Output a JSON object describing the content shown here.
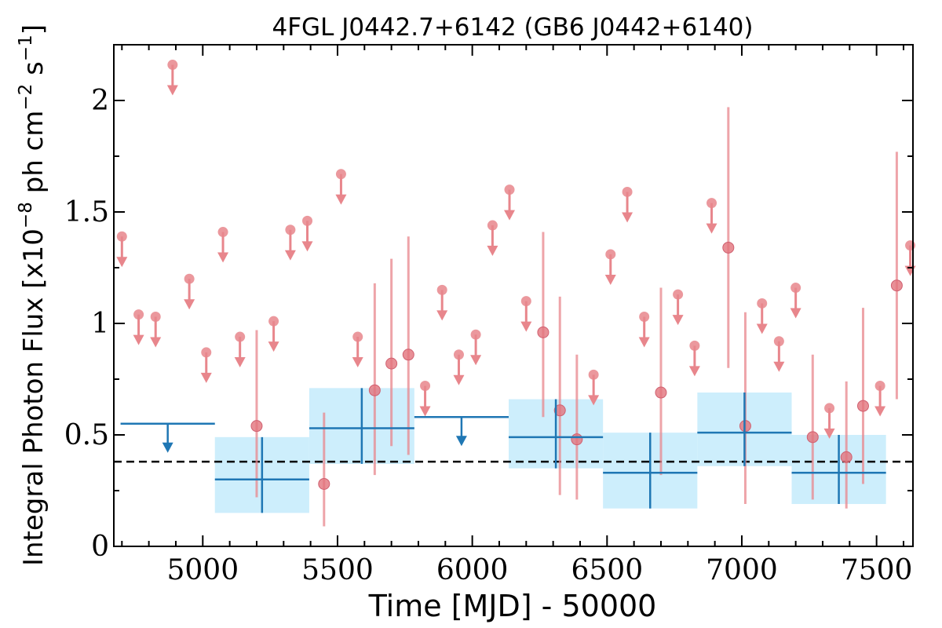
{
  "chart_data": {
    "type": "scatter",
    "title": "4FGL J0442.7+6142 (GB6 J0442+6140)",
    "xlabel": "Time [MJD] - 50000",
    "ylabel": "Integral Photon Flux [x10",
    "ylabel_exp1": "−8",
    "ylabel_mid": " ph cm",
    "ylabel_exp2": "−2",
    "ylabel_mid2": " s",
    "ylabel_exp3": "−1",
    "ylabel_end": "]",
    "xlim": [
      4670,
      7635
    ],
    "ylim": [
      0,
      2.25
    ],
    "x_ticks": [
      5000,
      5500,
      6000,
      6500,
      7000,
      7500
    ],
    "x_tick_labels": [
      "5000",
      "5500",
      "6000",
      "6500",
      "7000",
      "7500"
    ],
    "y_ticks": [
      0,
      0.5,
      1,
      1.5,
      2
    ],
    "y_tick_labels": [
      "0",
      "0.5",
      "1",
      "1.5",
      "2"
    ],
    "x_minor_step": 100,
    "y_minor_step": 0.25,
    "reference_line": 0.38,
    "colors": {
      "short": "#e8868c",
      "long": "#1f77b4",
      "band": "#cdeefc"
    },
    "short_upper_limits": [
      {
        "x": 4700,
        "y": 1.39
      },
      {
        "x": 4762,
        "y": 1.04
      },
      {
        "x": 4825,
        "y": 1.03
      },
      {
        "x": 4888,
        "y": 2.16
      },
      {
        "x": 4950,
        "y": 1.2
      },
      {
        "x": 5013,
        "y": 0.87
      },
      {
        "x": 5075,
        "y": 1.41
      },
      {
        "x": 5138,
        "y": 0.94
      },
      {
        "x": 5263,
        "y": 1.01
      },
      {
        "x": 5325,
        "y": 1.42
      },
      {
        "x": 5388,
        "y": 1.46
      },
      {
        "x": 5513,
        "y": 1.67
      },
      {
        "x": 5575,
        "y": 0.94
      },
      {
        "x": 5825,
        "y": 0.72
      },
      {
        "x": 5888,
        "y": 1.15
      },
      {
        "x": 5950,
        "y": 0.86
      },
      {
        "x": 6013,
        "y": 0.95
      },
      {
        "x": 6075,
        "y": 1.44
      },
      {
        "x": 6138,
        "y": 1.6
      },
      {
        "x": 6200,
        "y": 1.1
      },
      {
        "x": 6450,
        "y": 0.77
      },
      {
        "x": 6513,
        "y": 1.31
      },
      {
        "x": 6575,
        "y": 1.59
      },
      {
        "x": 6638,
        "y": 1.03
      },
      {
        "x": 6763,
        "y": 1.13
      },
      {
        "x": 6825,
        "y": 0.9
      },
      {
        "x": 6888,
        "y": 1.54
      },
      {
        "x": 7075,
        "y": 1.09
      },
      {
        "x": 7138,
        "y": 0.92
      },
      {
        "x": 7200,
        "y": 1.16
      },
      {
        "x": 7325,
        "y": 0.62
      },
      {
        "x": 7513,
        "y": 0.72
      },
      {
        "x": 7625,
        "y": 1.35
      }
    ],
    "short_detections": [
      {
        "x": 5200,
        "y": 0.54,
        "lo": 0.22,
        "hi": 0.97
      },
      {
        "x": 5450,
        "y": 0.28,
        "lo": 0.09,
        "hi": 0.6
      },
      {
        "x": 5638,
        "y": 0.7,
        "lo": 0.32,
        "hi": 1.18
      },
      {
        "x": 5700,
        "y": 0.82,
        "lo": 0.45,
        "hi": 1.29
      },
      {
        "x": 5763,
        "y": 0.86,
        "lo": 0.41,
        "hi": 1.39
      },
      {
        "x": 6263,
        "y": 0.96,
        "lo": 0.58,
        "hi": 1.41
      },
      {
        "x": 6325,
        "y": 0.61,
        "lo": 0.23,
        "hi": 1.12
      },
      {
        "x": 6388,
        "y": 0.48,
        "lo": 0.21,
        "hi": 0.86
      },
      {
        "x": 6700,
        "y": 0.69,
        "lo": 0.32,
        "hi": 1.16
      },
      {
        "x": 6950,
        "y": 1.34,
        "lo": 0.8,
        "hi": 1.97
      },
      {
        "x": 7013,
        "y": 0.54,
        "lo": 0.19,
        "hi": 1.05
      },
      {
        "x": 7263,
        "y": 0.49,
        "lo": 0.21,
        "hi": 0.86
      },
      {
        "x": 7388,
        "y": 0.4,
        "lo": 0.17,
        "hi": 0.74
      },
      {
        "x": 7450,
        "y": 0.63,
        "lo": 0.28,
        "hi": 1.07
      },
      {
        "x": 7575,
        "y": 1.17,
        "lo": 0.66,
        "hi": 1.77
      }
    ],
    "long_upper_limits": [
      {
        "x0": 4695,
        "x1": 5045,
        "xc": 4870,
        "y": 0.55
      },
      {
        "x0": 5785,
        "x1": 6135,
        "xc": 5960,
        "y": 0.58
      }
    ],
    "long_detections": [
      {
        "x0": 5045,
        "x1": 5395,
        "xc": 5220,
        "y": 0.3,
        "lo": 0.15,
        "hi": 0.49
      },
      {
        "x0": 5395,
        "x1": 5785,
        "xc": 5590,
        "y": 0.53,
        "lo": 0.37,
        "hi": 0.71
      },
      {
        "x0": 6135,
        "x1": 6485,
        "xc": 6310,
        "y": 0.49,
        "lo": 0.35,
        "hi": 0.66
      },
      {
        "x0": 6485,
        "x1": 6835,
        "xc": 6660,
        "y": 0.33,
        "lo": 0.17,
        "hi": 0.51
      },
      {
        "x0": 6835,
        "x1": 7185,
        "xc": 7010,
        "y": 0.51,
        "lo": 0.36,
        "hi": 0.69
      },
      {
        "x0": 7185,
        "x1": 7535,
        "xc": 7360,
        "y": 0.33,
        "lo": 0.19,
        "hi": 0.5
      }
    ]
  }
}
